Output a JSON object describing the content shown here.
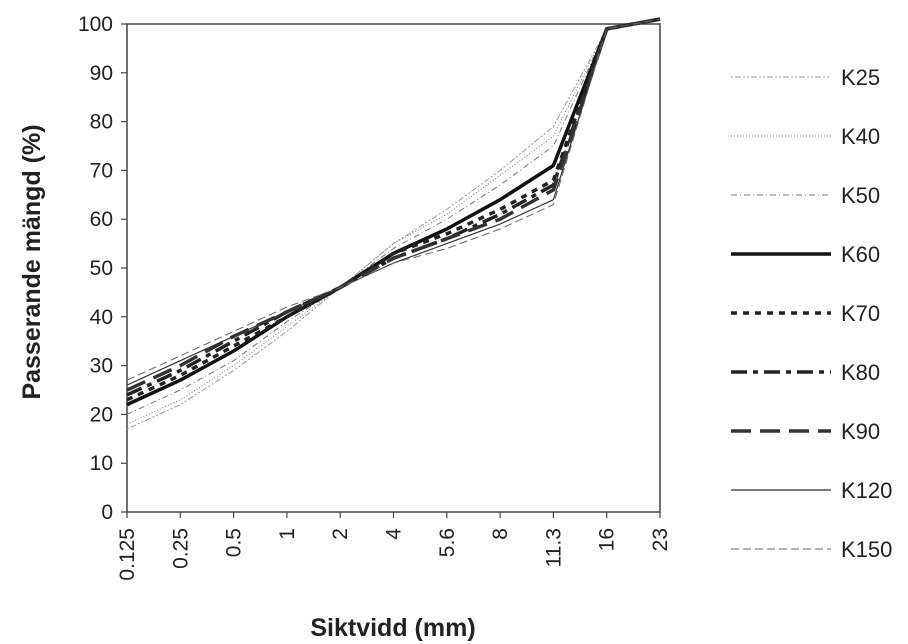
{
  "chart_data": {
    "type": "line",
    "title": "",
    "xlabel": "Siktvidd (mm)",
    "ylabel": "Passerande mängd (%)",
    "ylim": [
      0,
      100
    ],
    "yticks": [
      0,
      10,
      20,
      30,
      40,
      50,
      60,
      70,
      80,
      90,
      100
    ],
    "categories": [
      "0.125",
      "0.25",
      "0.5",
      "1",
      "2",
      "4",
      "5.6",
      "8",
      "11.3",
      "16",
      "23"
    ],
    "grid": false,
    "legend_position": "right",
    "series": [
      {
        "name": "K25",
        "values": [
          17,
          22,
          29,
          37,
          46,
          55,
          62,
          70,
          79,
          99,
          101
        ],
        "color": "#999999"
      },
      {
        "name": "K40",
        "values": [
          18,
          23,
          30,
          38,
          46,
          55,
          61,
          69,
          77,
          99,
          101
        ],
        "color": "#777777"
      },
      {
        "name": "K50",
        "values": [
          20,
          25,
          31,
          39,
          46,
          54,
          60,
          67,
          75,
          99,
          101
        ],
        "color": "#777777"
      },
      {
        "name": "K60",
        "values": [
          22,
          27,
          33,
          40,
          46,
          53,
          58,
          64,
          71,
          99,
          101
        ],
        "color": "#111111"
      },
      {
        "name": "K70",
        "values": [
          23,
          28,
          34,
          40,
          46,
          53,
          57,
          62,
          68,
          99,
          101
        ],
        "color": "#222222"
      },
      {
        "name": "K80",
        "values": [
          24,
          29,
          35,
          41,
          46,
          52,
          56,
          61,
          67,
          99,
          101
        ],
        "color": "#222222"
      },
      {
        "name": "K90",
        "values": [
          25,
          30,
          36,
          41,
          46,
          52,
          56,
          60,
          66,
          99,
          101
        ],
        "color": "#333333"
      },
      {
        "name": "K120",
        "values": [
          26,
          31,
          36,
          41,
          46,
          51,
          55,
          59,
          64,
          99,
          101
        ],
        "color": "#333333"
      },
      {
        "name": "K150",
        "values": [
          27,
          32,
          37,
          42,
          46,
          51,
          54,
          58,
          63,
          99,
          101
        ],
        "color": "#666666"
      }
    ]
  }
}
